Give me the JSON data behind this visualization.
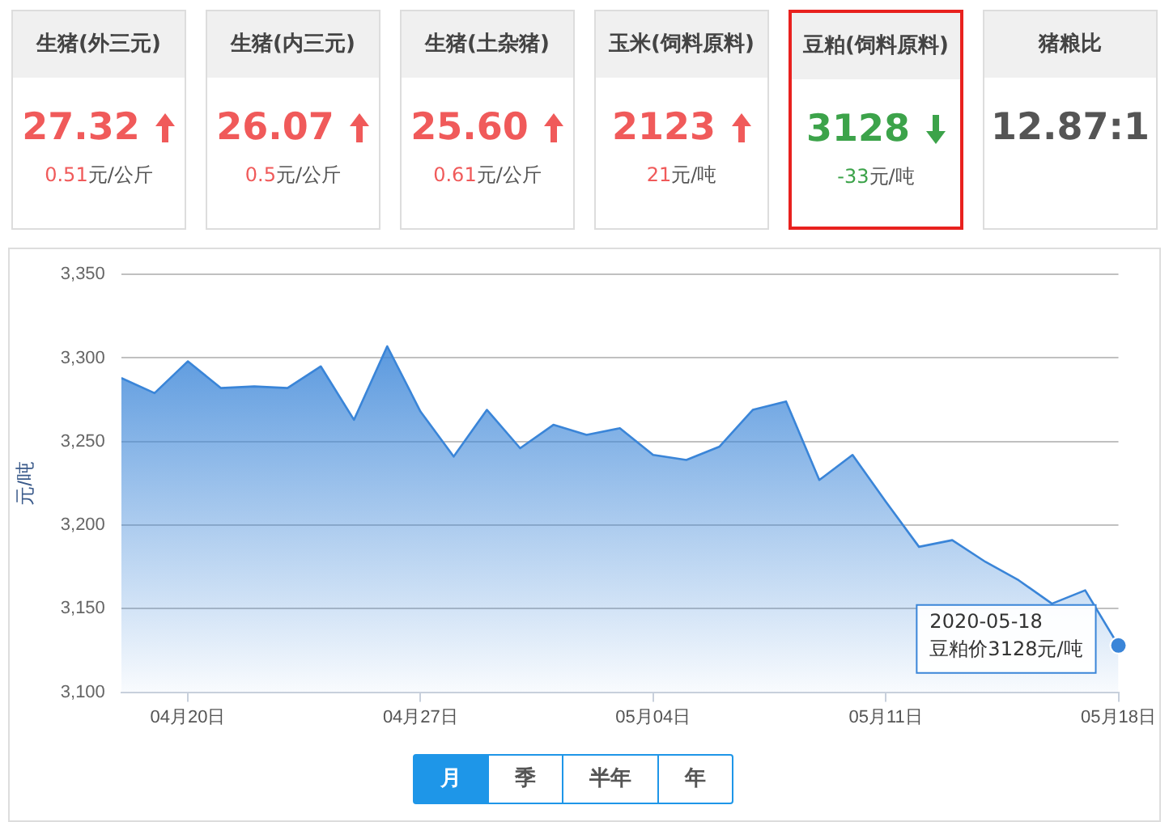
{
  "chart_data": [
    {
      "type": "other",
      "categories": [
        "生猪(外三元)",
        "生猪(内三元)",
        "生猪(土杂猪)",
        "玉米(饲料原料)",
        "豆粕(饲料原料)",
        "猪粮比"
      ],
      "value_labels": [
        "27.32",
        "26.07",
        "25.60",
        "2123",
        "3128",
        "12.87:1"
      ],
      "annotations": [
        "0.51元/公斤",
        "0.5元/公斤",
        "0.61元/公斤",
        "21元/吨",
        "-33元/吨"
      ]
    },
    {
      "type": "area",
      "ylabel": "元/吨",
      "x": [
        "2020-04-18",
        "2020-04-19",
        "2020-04-20",
        "2020-04-21",
        "2020-04-22",
        "2020-04-23",
        "2020-04-24",
        "2020-04-25",
        "2020-04-26",
        "2020-04-27",
        "2020-04-28",
        "2020-04-29",
        "2020-04-30",
        "2020-05-01",
        "2020-05-02",
        "2020-05-03",
        "2020-05-04",
        "2020-05-05",
        "2020-05-06",
        "2020-05-07",
        "2020-05-08",
        "2020-05-09",
        "2020-05-10",
        "2020-05-11",
        "2020-05-12",
        "2020-05-13",
        "2020-05-14",
        "2020-05-15",
        "2020-05-16",
        "2020-05-17",
        "2020-05-18"
      ],
      "series": [
        {
          "color": "#3a85d8",
          "values": [
            3288,
            3279,
            3298,
            3282,
            3283,
            3282,
            3295,
            3263,
            3307,
            3268,
            3241,
            3269,
            3246,
            3260,
            3254,
            3258,
            3242,
            3239,
            3247,
            3269,
            3274,
            3227,
            3242,
            3214,
            3187,
            3191,
            3178,
            3167,
            3153,
            3161,
            3128
          ]
        }
      ],
      "xlim": [
        "2020-04-18",
        "2020-05-18"
      ],
      "xticks": [
        {
          "value": "2020-04-20",
          "label": "04月20日"
        },
        {
          "value": "2020-04-27",
          "label": "04月27日"
        },
        {
          "value": "2020-05-04",
          "label": "05月04日"
        },
        {
          "value": "2020-05-11",
          "label": "05月11日"
        },
        {
          "value": "2020-05-18",
          "label": "05月18日"
        }
      ],
      "ylim": [
        3100,
        3350
      ],
      "yticks": [
        {
          "value": 3100,
          "label": "3,100"
        },
        {
          "value": 3150,
          "label": "3,150"
        },
        {
          "value": 3200,
          "label": "3,200"
        },
        {
          "value": 3250,
          "label": "3,250"
        },
        {
          "value": 3300,
          "label": "3,300"
        },
        {
          "value": 3350,
          "label": "3,350"
        }
      ],
      "grid": "y",
      "legend": false,
      "marker": "none",
      "annotations": [
        {
          "text": "2020-05-18\n豆粕价3128元/吨",
          "x": "2020-05-18",
          "y": 3128
        },
        "月",
        "季",
        "半年",
        "年"
      ]
    }
  ]
}
